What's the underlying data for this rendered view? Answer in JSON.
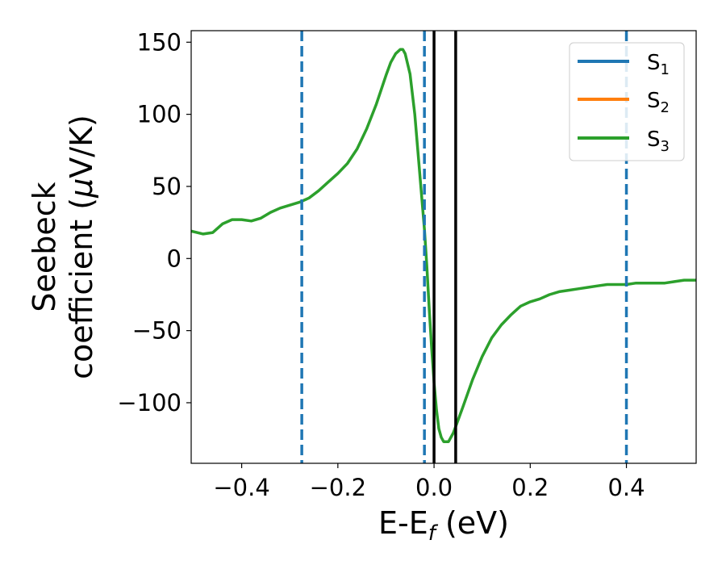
{
  "chart_data": {
    "type": "line",
    "xlabel": {
      "main": "E-E",
      "sub": "f",
      "suffix": " (eV)"
    },
    "ylabel": {
      "line1": "Seebeck",
      "line2_main": "coefficient  (",
      "line2_mu": "μ",
      "line2_suffix": "V/K)"
    },
    "xlim": [
      -0.505,
      0.545
    ],
    "ylim": [
      -142,
      158
    ],
    "xticks": [
      {
        "value": -0.4,
        "label": "−0.4"
      },
      {
        "value": -0.2,
        "label": "−0.2"
      },
      {
        "value": 0.0,
        "label": "0.0"
      },
      {
        "value": 0.2,
        "label": "0.2"
      },
      {
        "value": 0.4,
        "label": "0.4"
      }
    ],
    "yticks": [
      {
        "value": 150,
        "label": "150"
      },
      {
        "value": 100,
        "label": "100"
      },
      {
        "value": 50,
        "label": "50"
      },
      {
        "value": 0,
        "label": "0"
      },
      {
        "value": -50,
        "label": "−50"
      },
      {
        "value": -100,
        "label": "−100"
      }
    ],
    "grid": false,
    "legend_placement": "top-right",
    "series": [
      {
        "name": "S",
        "sub": "1",
        "color": "#1f77b4",
        "x": [],
        "y": []
      },
      {
        "name": "S",
        "sub": "2",
        "color": "#ff7f0e",
        "x": [],
        "y": []
      },
      {
        "name": "S",
        "sub": "3",
        "color": "#2ca02c",
        "x": [
          -0.505,
          -0.48,
          -0.46,
          -0.44,
          -0.42,
          -0.4,
          -0.38,
          -0.36,
          -0.34,
          -0.32,
          -0.3,
          -0.28,
          -0.26,
          -0.24,
          -0.22,
          -0.2,
          -0.18,
          -0.16,
          -0.14,
          -0.12,
          -0.1,
          -0.09,
          -0.08,
          -0.07,
          -0.065,
          -0.06,
          -0.05,
          -0.04,
          -0.03,
          -0.02,
          -0.015,
          -0.01,
          -0.005,
          0.0,
          0.005,
          0.01,
          0.015,
          0.02,
          0.03,
          0.04,
          0.05,
          0.06,
          0.08,
          0.1,
          0.12,
          0.14,
          0.16,
          0.18,
          0.2,
          0.22,
          0.24,
          0.26,
          0.28,
          0.3,
          0.32,
          0.34,
          0.36,
          0.38,
          0.4,
          0.42,
          0.44,
          0.46,
          0.48,
          0.5,
          0.52,
          0.545
        ],
        "y": [
          19,
          17,
          18,
          24,
          27,
          27,
          26,
          28,
          32,
          35,
          37,
          39,
          42,
          47,
          53,
          59,
          66,
          76,
          90,
          107,
          127,
          136,
          142,
          145,
          145,
          142,
          128,
          100,
          60,
          20,
          -5,
          -35,
          -62,
          -86,
          -105,
          -118,
          -124,
          -127,
          -127,
          -121,
          -112,
          -103,
          -84,
          -68,
          -55,
          -46,
          -39,
          -33,
          -30,
          -28,
          -25,
          -23,
          -22,
          -21,
          -20,
          -19,
          -18,
          -18,
          -18,
          -17,
          -17,
          -17,
          -17,
          -16,
          -15,
          -15
        ]
      }
    ],
    "vlines": [
      {
        "x": -0.275,
        "style": "dashed",
        "color": "#1f77b4"
      },
      {
        "x": -0.02,
        "style": "dashed",
        "color": "#1f77b4"
      },
      {
        "x": 0.4,
        "style": "dashed",
        "color": "#1f77b4"
      },
      {
        "x": 0.0,
        "style": "solid",
        "color": "#000000"
      },
      {
        "x": 0.045,
        "style": "solid",
        "color": "#000000"
      }
    ]
  }
}
